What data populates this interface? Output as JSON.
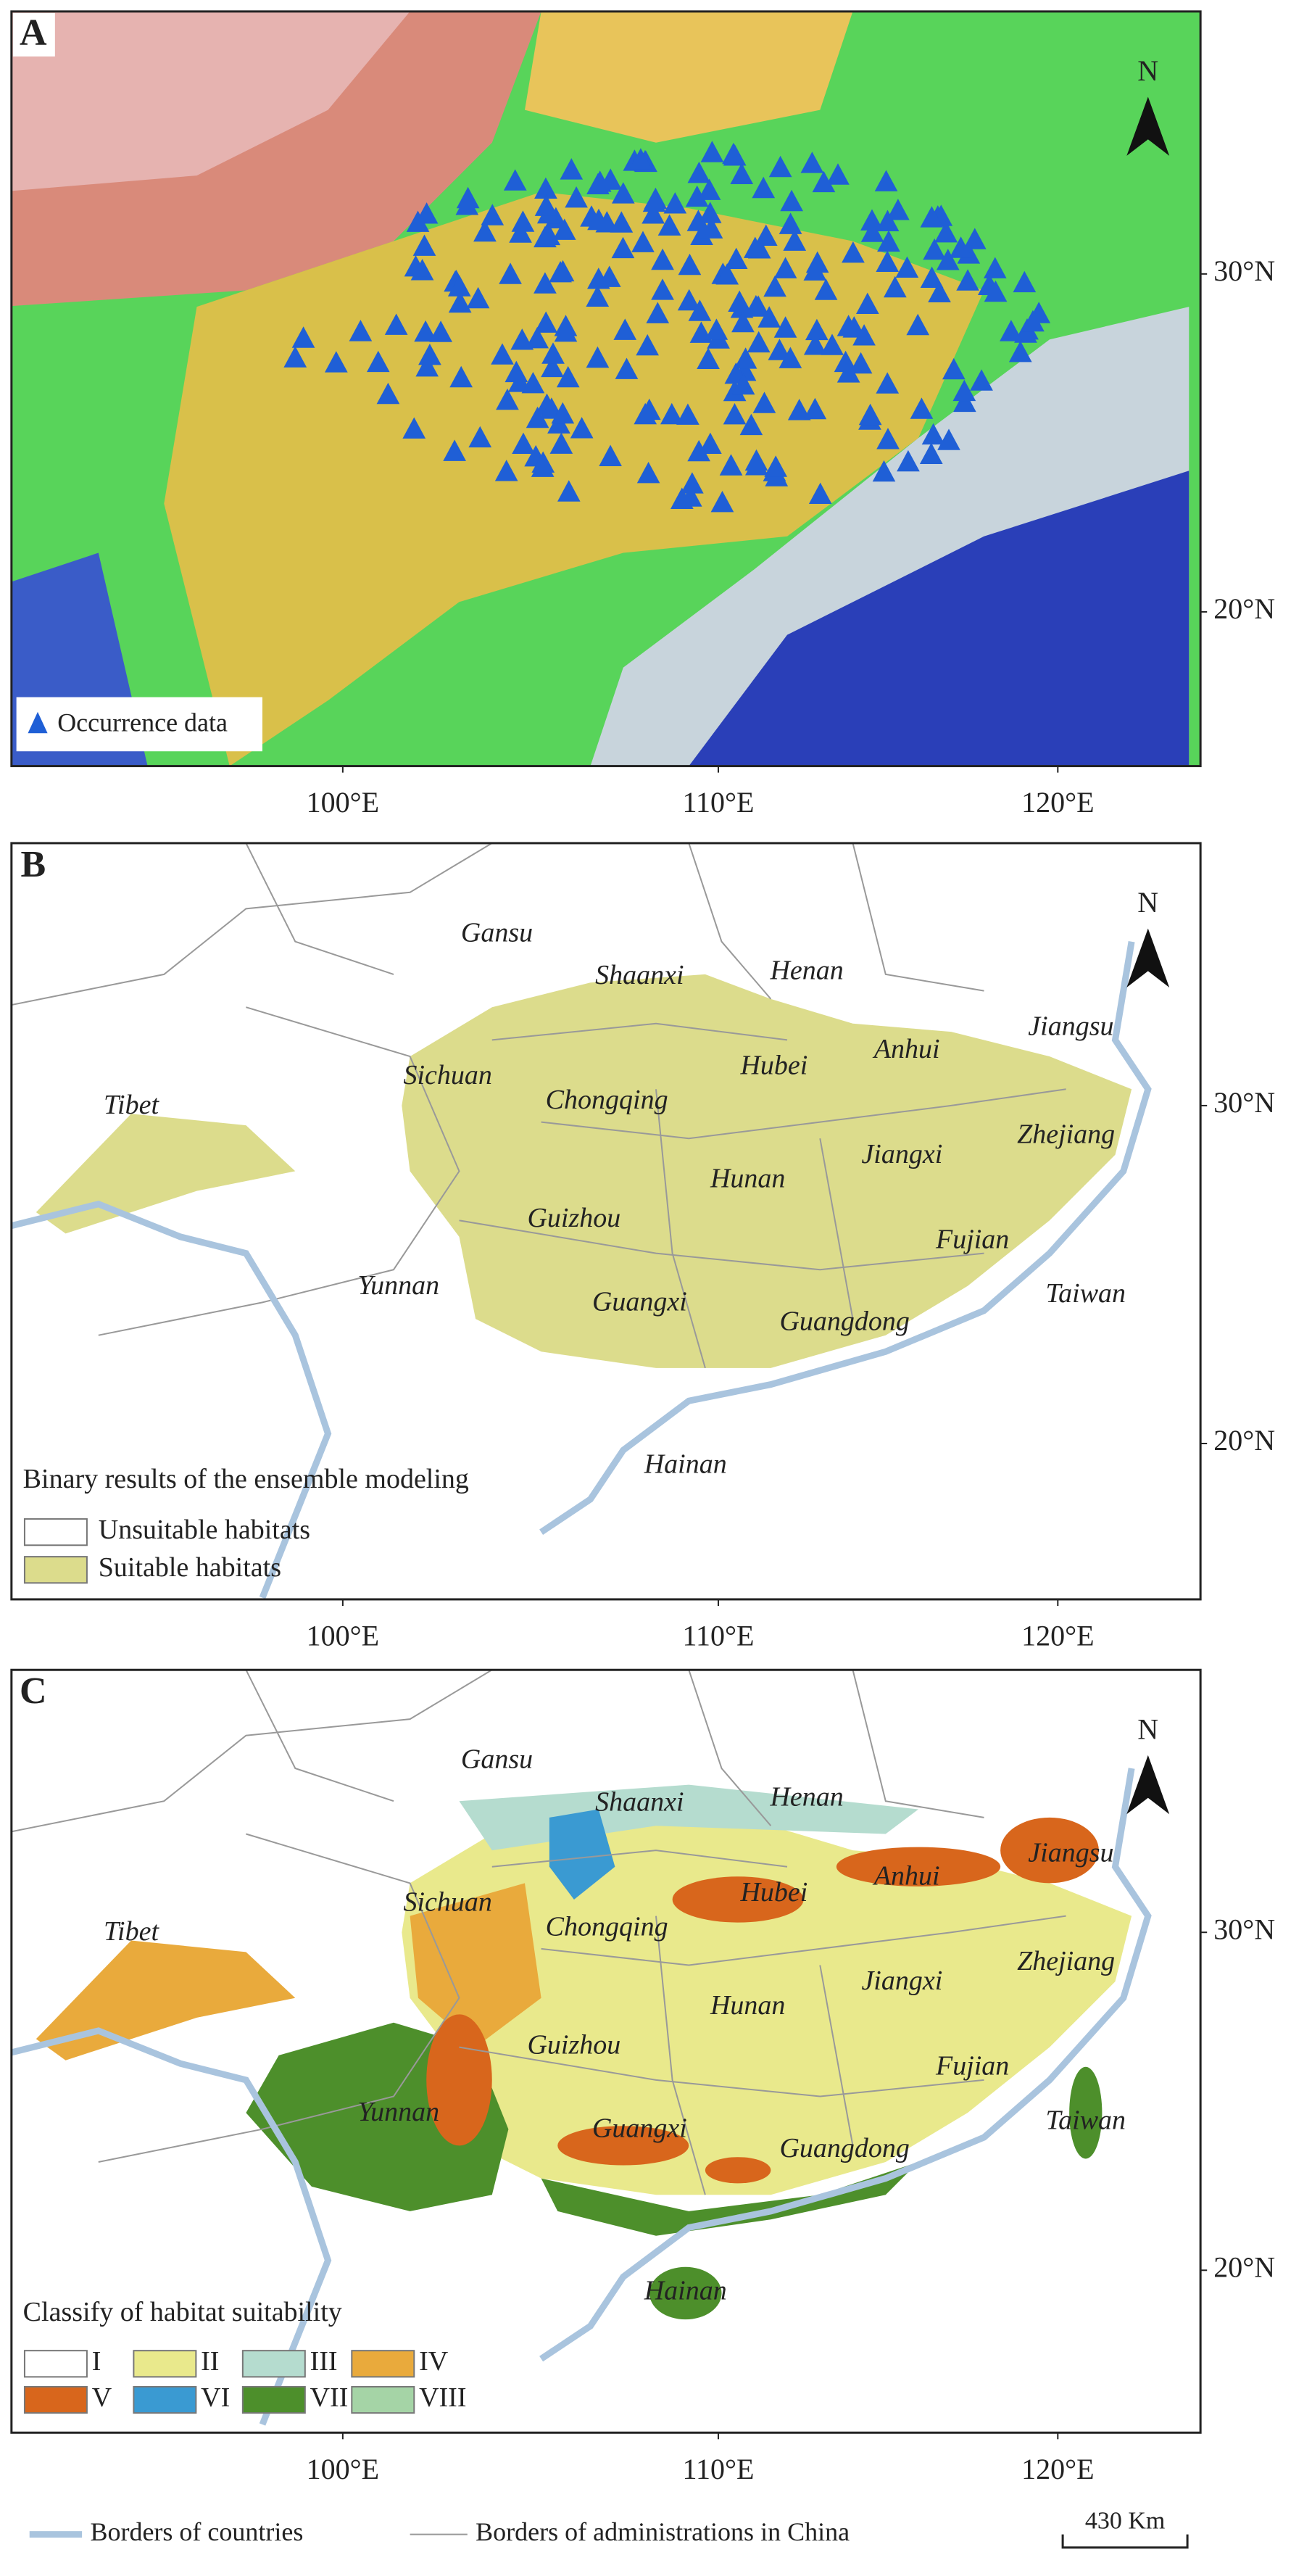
{
  "panels": [
    {
      "label": "A",
      "north": "N",
      "legend": {
        "items": [
          {
            "label": "Occurrence data",
            "color": "#1f5fd6"
          }
        ]
      },
      "xticks": [
        "100°E",
        "110°E",
        "120°E"
      ],
      "yticks": [
        "30°N",
        "20°N"
      ]
    },
    {
      "label": "B",
      "north": "N",
      "legend": {
        "title": "Binary results of the ensemble modeling",
        "items": [
          {
            "label": "Unsuitable habitats",
            "color": "#ffffff"
          },
          {
            "label": "Suitable habitats",
            "color": "#dcdc8c"
          }
        ]
      },
      "provinces": [
        "Gansu",
        "Shaanxi",
        "Henan",
        "Jiangsu",
        "Tibet",
        "Sichuan",
        "Chongqing",
        "Hubei",
        "Anhui",
        "Zhejiang",
        "Hunan",
        "Jiangxi",
        "Guizhou",
        "Fujian",
        "Yunnan",
        "Taiwan",
        "Guangxi",
        "Guangdong",
        "Hainan"
      ],
      "xticks": [
        "100°E",
        "110°E",
        "120°E"
      ],
      "yticks": [
        "30°N",
        "20°N"
      ]
    },
    {
      "label": "C",
      "north": "N",
      "legend": {
        "title": "Classify of habitat suitability",
        "items": [
          {
            "label": "I",
            "color": "#ffffff"
          },
          {
            "label": "II",
            "color": "#e9e98c"
          },
          {
            "label": "III",
            "color": "#b5dccf"
          },
          {
            "label": "IV",
            "color": "#e9aa3c"
          },
          {
            "label": "V",
            "color": "#d8661c"
          },
          {
            "label": "VI",
            "color": "#3a9ad2"
          },
          {
            "label": "VII",
            "color": "#4d8f2b"
          },
          {
            "label": "VIII",
            "color": "#a5d4a6"
          }
        ]
      },
      "provinces": [
        "Gansu",
        "Shaanxi",
        "Henan",
        "Jiangsu",
        "Tibet",
        "Sichuan",
        "Chongqing",
        "Hubei",
        "Anhui",
        "Zhejiang",
        "Hunan",
        "Jiangxi",
        "Guizhou",
        "Fujian",
        "Yunnan",
        "Taiwan",
        "Guangxi",
        "Guangdong",
        "Hainan"
      ],
      "xticks": [
        "100°E",
        "110°E",
        "120°E"
      ],
      "yticks": [
        "30°N",
        "20°N"
      ]
    }
  ],
  "footer": {
    "items": [
      "Borders of countries",
      "Borders of administrations in China"
    ],
    "scale": "430 Km"
  }
}
